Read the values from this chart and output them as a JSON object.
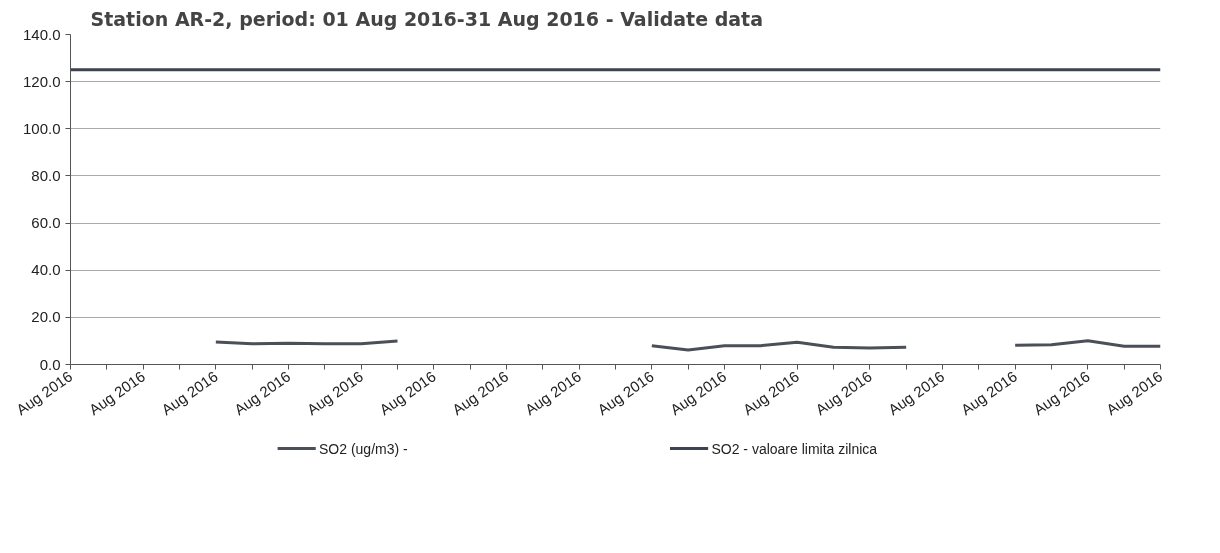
{
  "chart_data": {
    "type": "line",
    "title": "Station AR-2, period: 01 Aug 2016-31 Aug 2016 - Validate data",
    "categories": [
      "Aug 2016",
      null,
      "Aug 2016",
      null,
      "Aug 2016",
      null,
      "Aug 2016",
      null,
      "Aug 2016",
      null,
      "Aug 2016",
      null,
      "Aug 2016",
      null,
      "Aug 2016",
      null,
      "Aug 2016",
      null,
      "Aug 2016",
      null,
      "Aug 2016",
      null,
      "Aug 2016",
      null,
      "Aug 2016",
      null,
      "Aug 2016",
      null,
      "Aug 2016",
      null,
      "Aug 2016"
    ],
    "series": [
      {
        "name": "SO2 (ug/m3)  -",
        "color": "#4a4f58",
        "values": [
          null,
          null,
          null,
          null,
          9.5,
          8.8,
          9.0,
          8.8,
          8.8,
          10.0,
          null,
          null,
          null,
          null,
          null,
          null,
          8.0,
          6.2,
          8.0,
          8.0,
          9.4,
          7.3,
          7.0,
          7.3,
          null,
          null,
          8.2,
          8.4,
          10.1,
          7.7,
          7.7
        ]
      },
      {
        "name": "SO2 - valoare limita zilnica",
        "color": "#3d4350",
        "values": [
          125,
          125,
          125,
          125,
          125,
          125,
          125,
          125,
          125,
          125,
          125,
          125,
          125,
          125,
          125,
          125,
          125,
          125,
          125,
          125,
          125,
          125,
          125,
          125,
          125,
          125,
          125,
          125,
          125,
          125,
          125
        ]
      }
    ],
    "ylim": [
      0,
      140
    ],
    "yticks": [
      {
        "value": 0,
        "label": "0.0"
      },
      {
        "value": 20,
        "label": "20.0"
      },
      {
        "value": 40,
        "label": "40.0"
      },
      {
        "value": 60,
        "label": "60.0"
      },
      {
        "value": 80,
        "label": "80.0"
      },
      {
        "value": 100,
        "label": "100.0"
      },
      {
        "value": 120,
        "label": "120.0"
      },
      {
        "value": 140,
        "label": "140.0"
      }
    ],
    "grid": "y",
    "legend": "bottom",
    "marker": "none",
    "line_style": "solid"
  }
}
